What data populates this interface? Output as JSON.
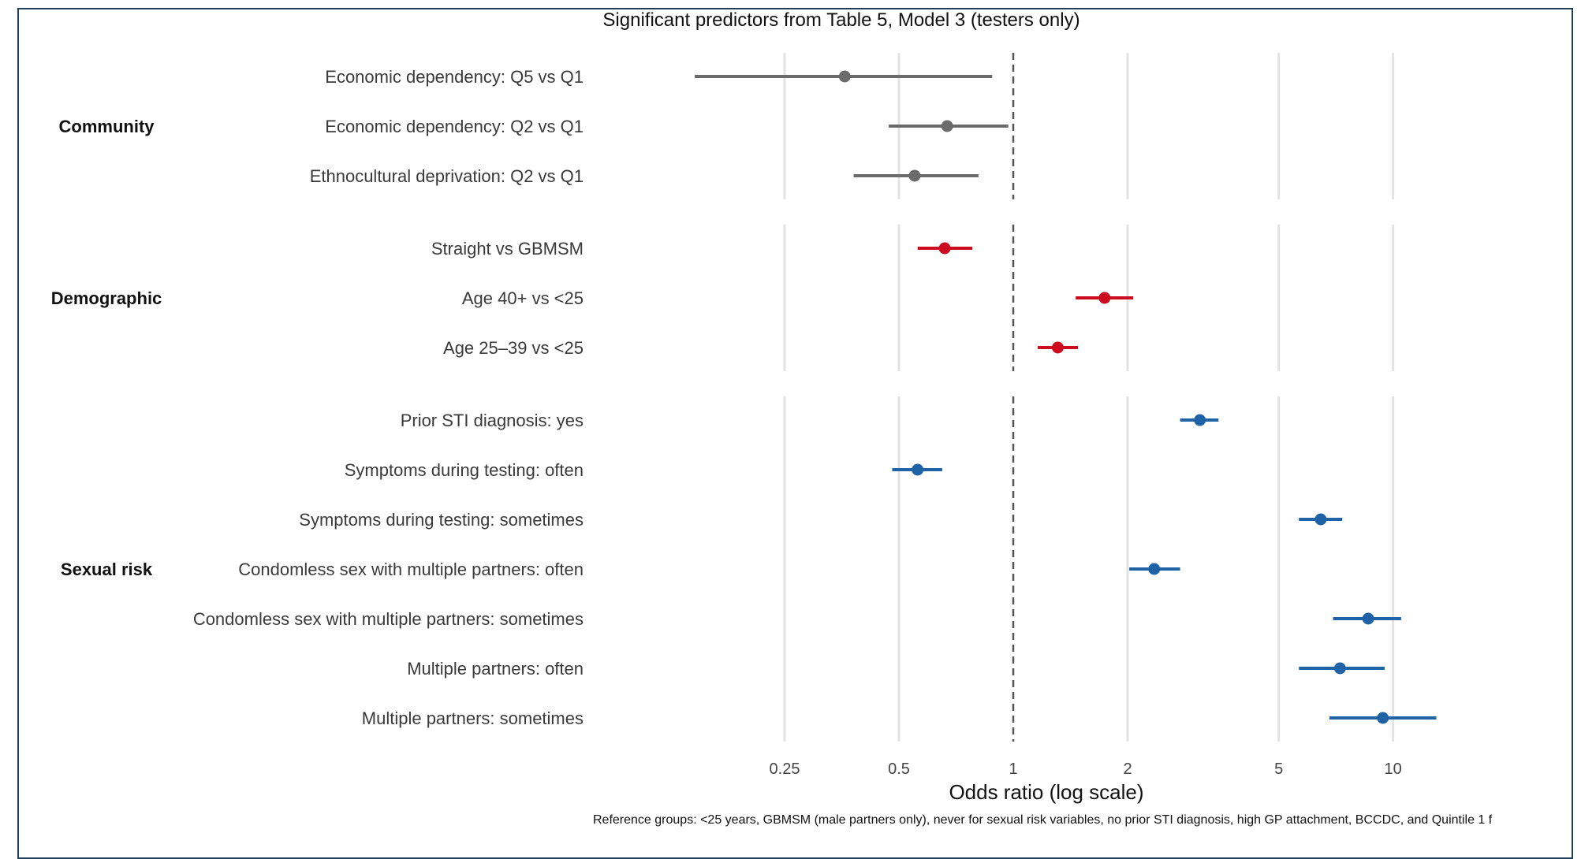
{
  "chart_data": {
    "type": "scatter",
    "subtype": "forest-plot",
    "title": "Significant predictors from Table 5, Model 3 (testers only)",
    "xlabel": "Odds ratio (log scale)",
    "x_scale": "log",
    "xlim": [
      0.125,
      18
    ],
    "x_ticks": [
      0.25,
      0.5,
      1,
      2,
      5,
      10
    ],
    "x_tick_labels": [
      "0.25",
      "0.5",
      "1",
      "2",
      "5",
      "10"
    ],
    "reference_line": 1,
    "grid": "vertical",
    "footnote": "Reference groups: <25 years, GBMSM (male partners only), never for sexual risk variables, no prior STI diagnosis, high GP attachment, BCCDC, and Quintile 1 f",
    "groups": [
      {
        "name": "Community",
        "color": "#6b6b6b",
        "rows": [
          {
            "label": "Economic dependency: Q5 vs Q1",
            "or": 0.36,
            "lo": 0.145,
            "hi": 0.88
          },
          {
            "label": "Economic dependency: Q2 vs Q1",
            "or": 0.67,
            "lo": 0.47,
            "hi": 0.97
          },
          {
            "label": "Ethnocultural deprivation: Q2 vs Q1",
            "or": 0.55,
            "lo": 0.38,
            "hi": 0.81
          }
        ]
      },
      {
        "name": "Demographic",
        "color": "#cc0c1e",
        "rows": [
          {
            "label": "Straight vs GBMSM",
            "or": 0.66,
            "lo": 0.56,
            "hi": 0.78
          },
          {
            "label": "Age 40+ vs <25",
            "or": 1.74,
            "lo": 1.46,
            "hi": 2.07
          },
          {
            "label": "Age 25–39 vs <25",
            "or": 1.31,
            "lo": 1.16,
            "hi": 1.48
          }
        ]
      },
      {
        "name": "Sexual risk",
        "color": "#1f63a6",
        "rows": [
          {
            "label": "Prior STI diagnosis: yes",
            "or": 3.1,
            "lo": 2.75,
            "hi": 3.47
          },
          {
            "label": "Symptoms during testing: often",
            "or": 0.56,
            "lo": 0.48,
            "hi": 0.65
          },
          {
            "label": "Symptoms during testing: sometimes",
            "or": 6.45,
            "lo": 5.65,
            "hi": 7.35
          },
          {
            "label": "Condomless sex with multiple partners: often",
            "or": 2.35,
            "lo": 2.02,
            "hi": 2.75
          },
          {
            "label": "Condomless sex with multiple partners: sometimes",
            "or": 8.6,
            "lo": 6.95,
            "hi": 10.5
          },
          {
            "label": "Multiple partners: often",
            "or": 7.25,
            "lo": 5.65,
            "hi": 9.5
          },
          {
            "label": "Multiple partners: sometimes",
            "or": 9.4,
            "lo": 6.8,
            "hi": 13.0
          }
        ]
      }
    ]
  }
}
